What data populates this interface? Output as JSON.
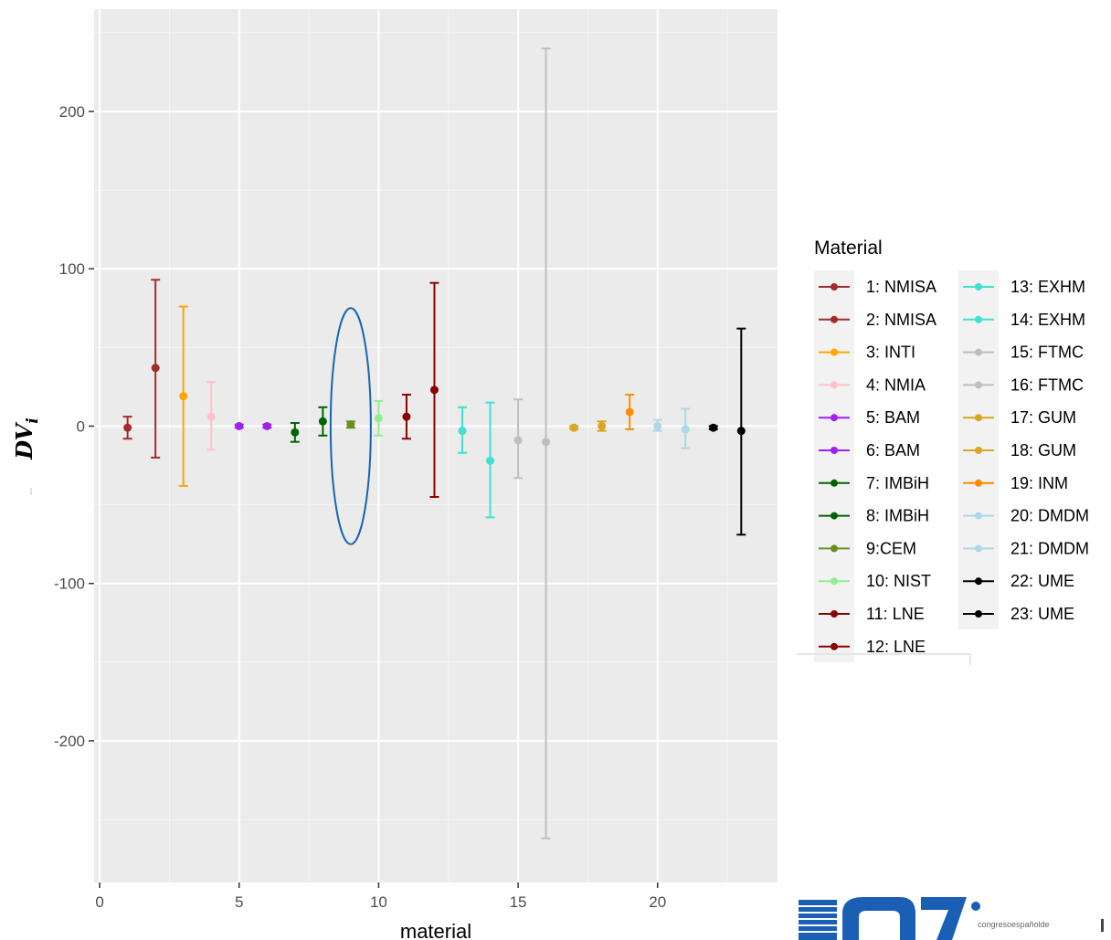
{
  "chart_data": {
    "type": "scatter",
    "subtype": "point-with-error-bars",
    "title": "",
    "xlabel": "material",
    "ylabel_main": "DV",
    "ylabel_sub": "i",
    "xlim": [
      -0.2,
      24.3
    ],
    "ylim": [
      -290,
      265
    ],
    "x_ticks": [
      0,
      5,
      10,
      15,
      20
    ],
    "y_ticks": [
      -200,
      -100,
      0,
      100,
      200
    ],
    "x_tick_labels": [
      "0",
      "5",
      "10",
      "15",
      "20"
    ],
    "y_tick_labels": [
      "-200",
      "-100",
      "0",
      "100",
      "200"
    ],
    "grid": true,
    "background": "#ebebeb",
    "legend": {
      "title": "Material",
      "position": "right",
      "columns": 2
    },
    "highlight_ellipse": {
      "x": 9,
      "y_range": [
        -75,
        75
      ],
      "color": "#1a64b0"
    },
    "points": [
      {
        "x": 1,
        "y": -1,
        "lo": -8,
        "hi": 6,
        "label": "1: NMISA",
        "color": "#a52a2a"
      },
      {
        "x": 2,
        "y": 37,
        "lo": -20,
        "hi": 93,
        "label": "2: NMISA",
        "color": "#a52a2a"
      },
      {
        "x": 3,
        "y": 19,
        "lo": -38,
        "hi": 76,
        "label": "3: INTI",
        "color": "#ffa500"
      },
      {
        "x": 4,
        "y": 6,
        "lo": -15,
        "hi": 28,
        "label": "4: NMIA",
        "color": "#ffc0cb"
      },
      {
        "x": 5,
        "y": 0,
        "lo": -1,
        "hi": 1,
        "label": "5: BAM",
        "color": "#a020f0"
      },
      {
        "x": 6,
        "y": 0,
        "lo": -1,
        "hi": 1,
        "label": "6: BAM",
        "color": "#a020f0"
      },
      {
        "x": 7,
        "y": -4,
        "lo": -10,
        "hi": 2,
        "label": "7: IMBiH",
        "color": "#006400"
      },
      {
        "x": 8,
        "y": 3,
        "lo": -6,
        "hi": 12,
        "label": "8: IMBiH",
        "color": "#006400"
      },
      {
        "x": 9,
        "y": 1,
        "lo": -1,
        "hi": 3,
        "label": "9:CEM",
        "color": "#6b8e23"
      },
      {
        "x": 10,
        "y": 5,
        "lo": -6,
        "hi": 16,
        "label": "10: NIST",
        "color": "#90ee90"
      },
      {
        "x": 11,
        "y": 6,
        "lo": -8,
        "hi": 20,
        "label": "11: LNE",
        "color": "#8b0000"
      },
      {
        "x": 12,
        "y": 23,
        "lo": -45,
        "hi": 91,
        "label": "12: LNE",
        "color": "#8b0000"
      },
      {
        "x": 13,
        "y": -3,
        "lo": -17,
        "hi": 12,
        "label": "13: EXHM",
        "color": "#40e0d0"
      },
      {
        "x": 14,
        "y": -22,
        "lo": -58,
        "hi": 15,
        "label": "14: EXHM",
        "color": "#40e0d0"
      },
      {
        "x": 15,
        "y": -9,
        "lo": -33,
        "hi": 17,
        "label": "15: FTMC",
        "color": "#bebebe"
      },
      {
        "x": 16,
        "y": -10,
        "lo": -262,
        "hi": 240,
        "label": "16: FTMC",
        "color": "#bebebe"
      },
      {
        "x": 17,
        "y": -1,
        "lo": -2,
        "hi": 0,
        "label": "17: GUM",
        "color": "#daa520"
      },
      {
        "x": 18,
        "y": 0,
        "lo": -3,
        "hi": 3,
        "label": "18: GUM",
        "color": "#daa520"
      },
      {
        "x": 19,
        "y": 9,
        "lo": -2,
        "hi": 20,
        "label": "19: INM",
        "color": "#ff8c00"
      },
      {
        "x": 20,
        "y": 0,
        "lo": -3,
        "hi": 4,
        "label": "20: DMDM",
        "color": "#add8e6"
      },
      {
        "x": 21,
        "y": -2,
        "lo": -14,
        "hi": 11,
        "label": "21: DMDM",
        "color": "#add8e6"
      },
      {
        "x": 22,
        "y": -1,
        "lo": -2,
        "hi": 0,
        "label": "22: UME",
        "color": "#000000"
      },
      {
        "x": 23,
        "y": -3,
        "lo": -69,
        "hi": 62,
        "label": "23: UME",
        "color": "#000000"
      }
    ]
  },
  "logo": {
    "text": "congresoespañolde",
    "color": "#1a5fb4"
  }
}
